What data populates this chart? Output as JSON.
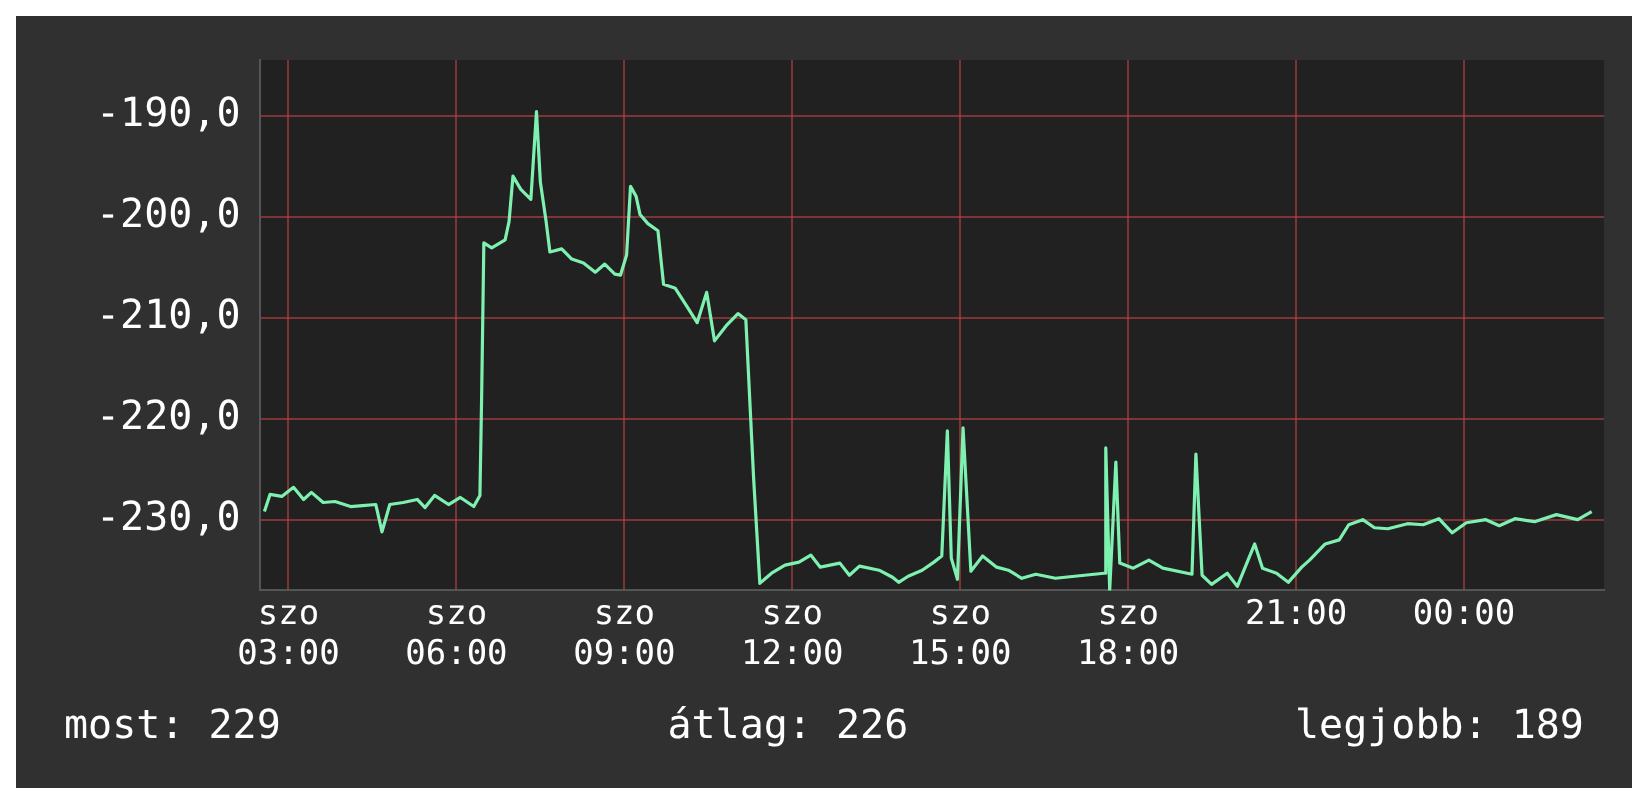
{
  "chart_data": {
    "type": "line",
    "xlim": [
      2.5,
      26.5
    ],
    "ylim": [
      -237,
      -184.5
    ],
    "xticks": [
      {
        "value": 3,
        "label": "szo 03:00"
      },
      {
        "value": 6,
        "label": "szo 06:00"
      },
      {
        "value": 9,
        "label": "szo 09:00"
      },
      {
        "value": 12,
        "label": "szo 12:00"
      },
      {
        "value": 15,
        "label": "szo 15:00"
      },
      {
        "value": 18,
        "label": "szo 18:00"
      },
      {
        "value": 21,
        "label": "21:00"
      },
      {
        "value": 24,
        "label": "00:00"
      }
    ],
    "yticks": [
      {
        "value": -190,
        "label": "-190,0"
      },
      {
        "value": -200,
        "label": "-200,0"
      },
      {
        "value": -210,
        "label": "-210,0"
      },
      {
        "value": -220,
        "label": "-220,0"
      },
      {
        "value": -230,
        "label": "-230,0"
      }
    ],
    "grid": true,
    "legend": false,
    "marker": "none",
    "line_style": "solid",
    "annotations": [
      "most: 229",
      "átlag: 226",
      "legjobb: 189"
    ],
    "series": [
      {
        "color": "#7ef0b0",
        "x": [
          2.57,
          2.67,
          2.88,
          3.09,
          3.27,
          3.41,
          3.62,
          3.83,
          4.11,
          4.32,
          4.56,
          4.67,
          4.81,
          5.05,
          5.3,
          5.44,
          5.61,
          5.86,
          6.07,
          6.31,
          6.42,
          6.45,
          6.49,
          6.63,
          6.87,
          6.94,
          7.01,
          7.15,
          7.33,
          7.43,
          7.5,
          7.6,
          7.67,
          7.88,
          8.06,
          8.27,
          8.48,
          8.65,
          8.83,
          8.93,
          9.04,
          9.11,
          9.21,
          9.28,
          9.42,
          9.6,
          9.7,
          9.91,
          10.12,
          10.3,
          10.47,
          10.61,
          10.82,
          11.03,
          11.17,
          11.31,
          11.42,
          11.63,
          11.87,
          12.12,
          12.33,
          12.5,
          12.85,
          13.02,
          13.2,
          13.55,
          13.79,
          13.9,
          14.07,
          14.32,
          14.53,
          14.67,
          14.77,
          14.84,
          14.95,
          15.05,
          15.19,
          15.4,
          15.65,
          15.86,
          16.1,
          16.35,
          16.7,
          17.22,
          17.57,
          17.6,
          17.67,
          17.78,
          17.85,
          18.09,
          18.37,
          18.62,
          19.14,
          19.21,
          19.32,
          19.49,
          19.77,
          19.95,
          20.26,
          20.4,
          20.65,
          20.86,
          21.1,
          21.24,
          21.52,
          21.77,
          21.94,
          22.19,
          22.4,
          22.64,
          22.99,
          23.27,
          23.55,
          23.79,
          24.04,
          24.39,
          24.63,
          24.91,
          25.26,
          25.65,
          26.03,
          26.28
        ],
        "values": [
          -229.2,
          -227.5,
          -227.7,
          -226.8,
          -228,
          -227.3,
          -228.3,
          -228.2,
          -228.7,
          -228.6,
          -228.5,
          -231.2,
          -228.5,
          -228.3,
          -228,
          -228.8,
          -227.6,
          -228.5,
          -227.8,
          -228.7,
          -227.6,
          -218,
          -202.6,
          -203.1,
          -202.3,
          -200.5,
          -196,
          -197.3,
          -198.3,
          -189.6,
          -196.6,
          -200.4,
          -203.5,
          -203.2,
          -204.2,
          -204.6,
          -205.5,
          -204.7,
          -205.7,
          -205.8,
          -203.8,
          -197,
          -198,
          -199.8,
          -200.7,
          -201.4,
          -206.7,
          -207.1,
          -208.9,
          -210.5,
          -207.5,
          -212.3,
          -210.8,
          -209.6,
          -210.2,
          -226,
          -236.3,
          -235.3,
          -234.5,
          -234.2,
          -233.5,
          -234.7,
          -234.3,
          -235.5,
          -234.6,
          -235,
          -235.7,
          -236.2,
          -235.6,
          -235,
          -234.2,
          -233.6,
          -221.2,
          -233.8,
          -235.9,
          -220.9,
          -235.1,
          -233.6,
          -234.7,
          -235,
          -235.8,
          -235.4,
          -235.8,
          -235.5,
          -235.3,
          -222.9,
          -237,
          -224.3,
          -234.3,
          -234.8,
          -234,
          -234.8,
          -235.4,
          -223.5,
          -235.5,
          -236.4,
          -235.3,
          -236.6,
          -232.4,
          -234.8,
          -235.3,
          -236.2,
          -234.7,
          -234,
          -232.4,
          -232,
          -230.5,
          -230,
          -230.8,
          -230.9,
          -230.4,
          -230.5,
          -229.9,
          -231.3,
          -230.3,
          -230,
          -230.6,
          -229.9,
          -230.2,
          -229.5,
          -230,
          -229.2
        ]
      }
    ]
  }
}
